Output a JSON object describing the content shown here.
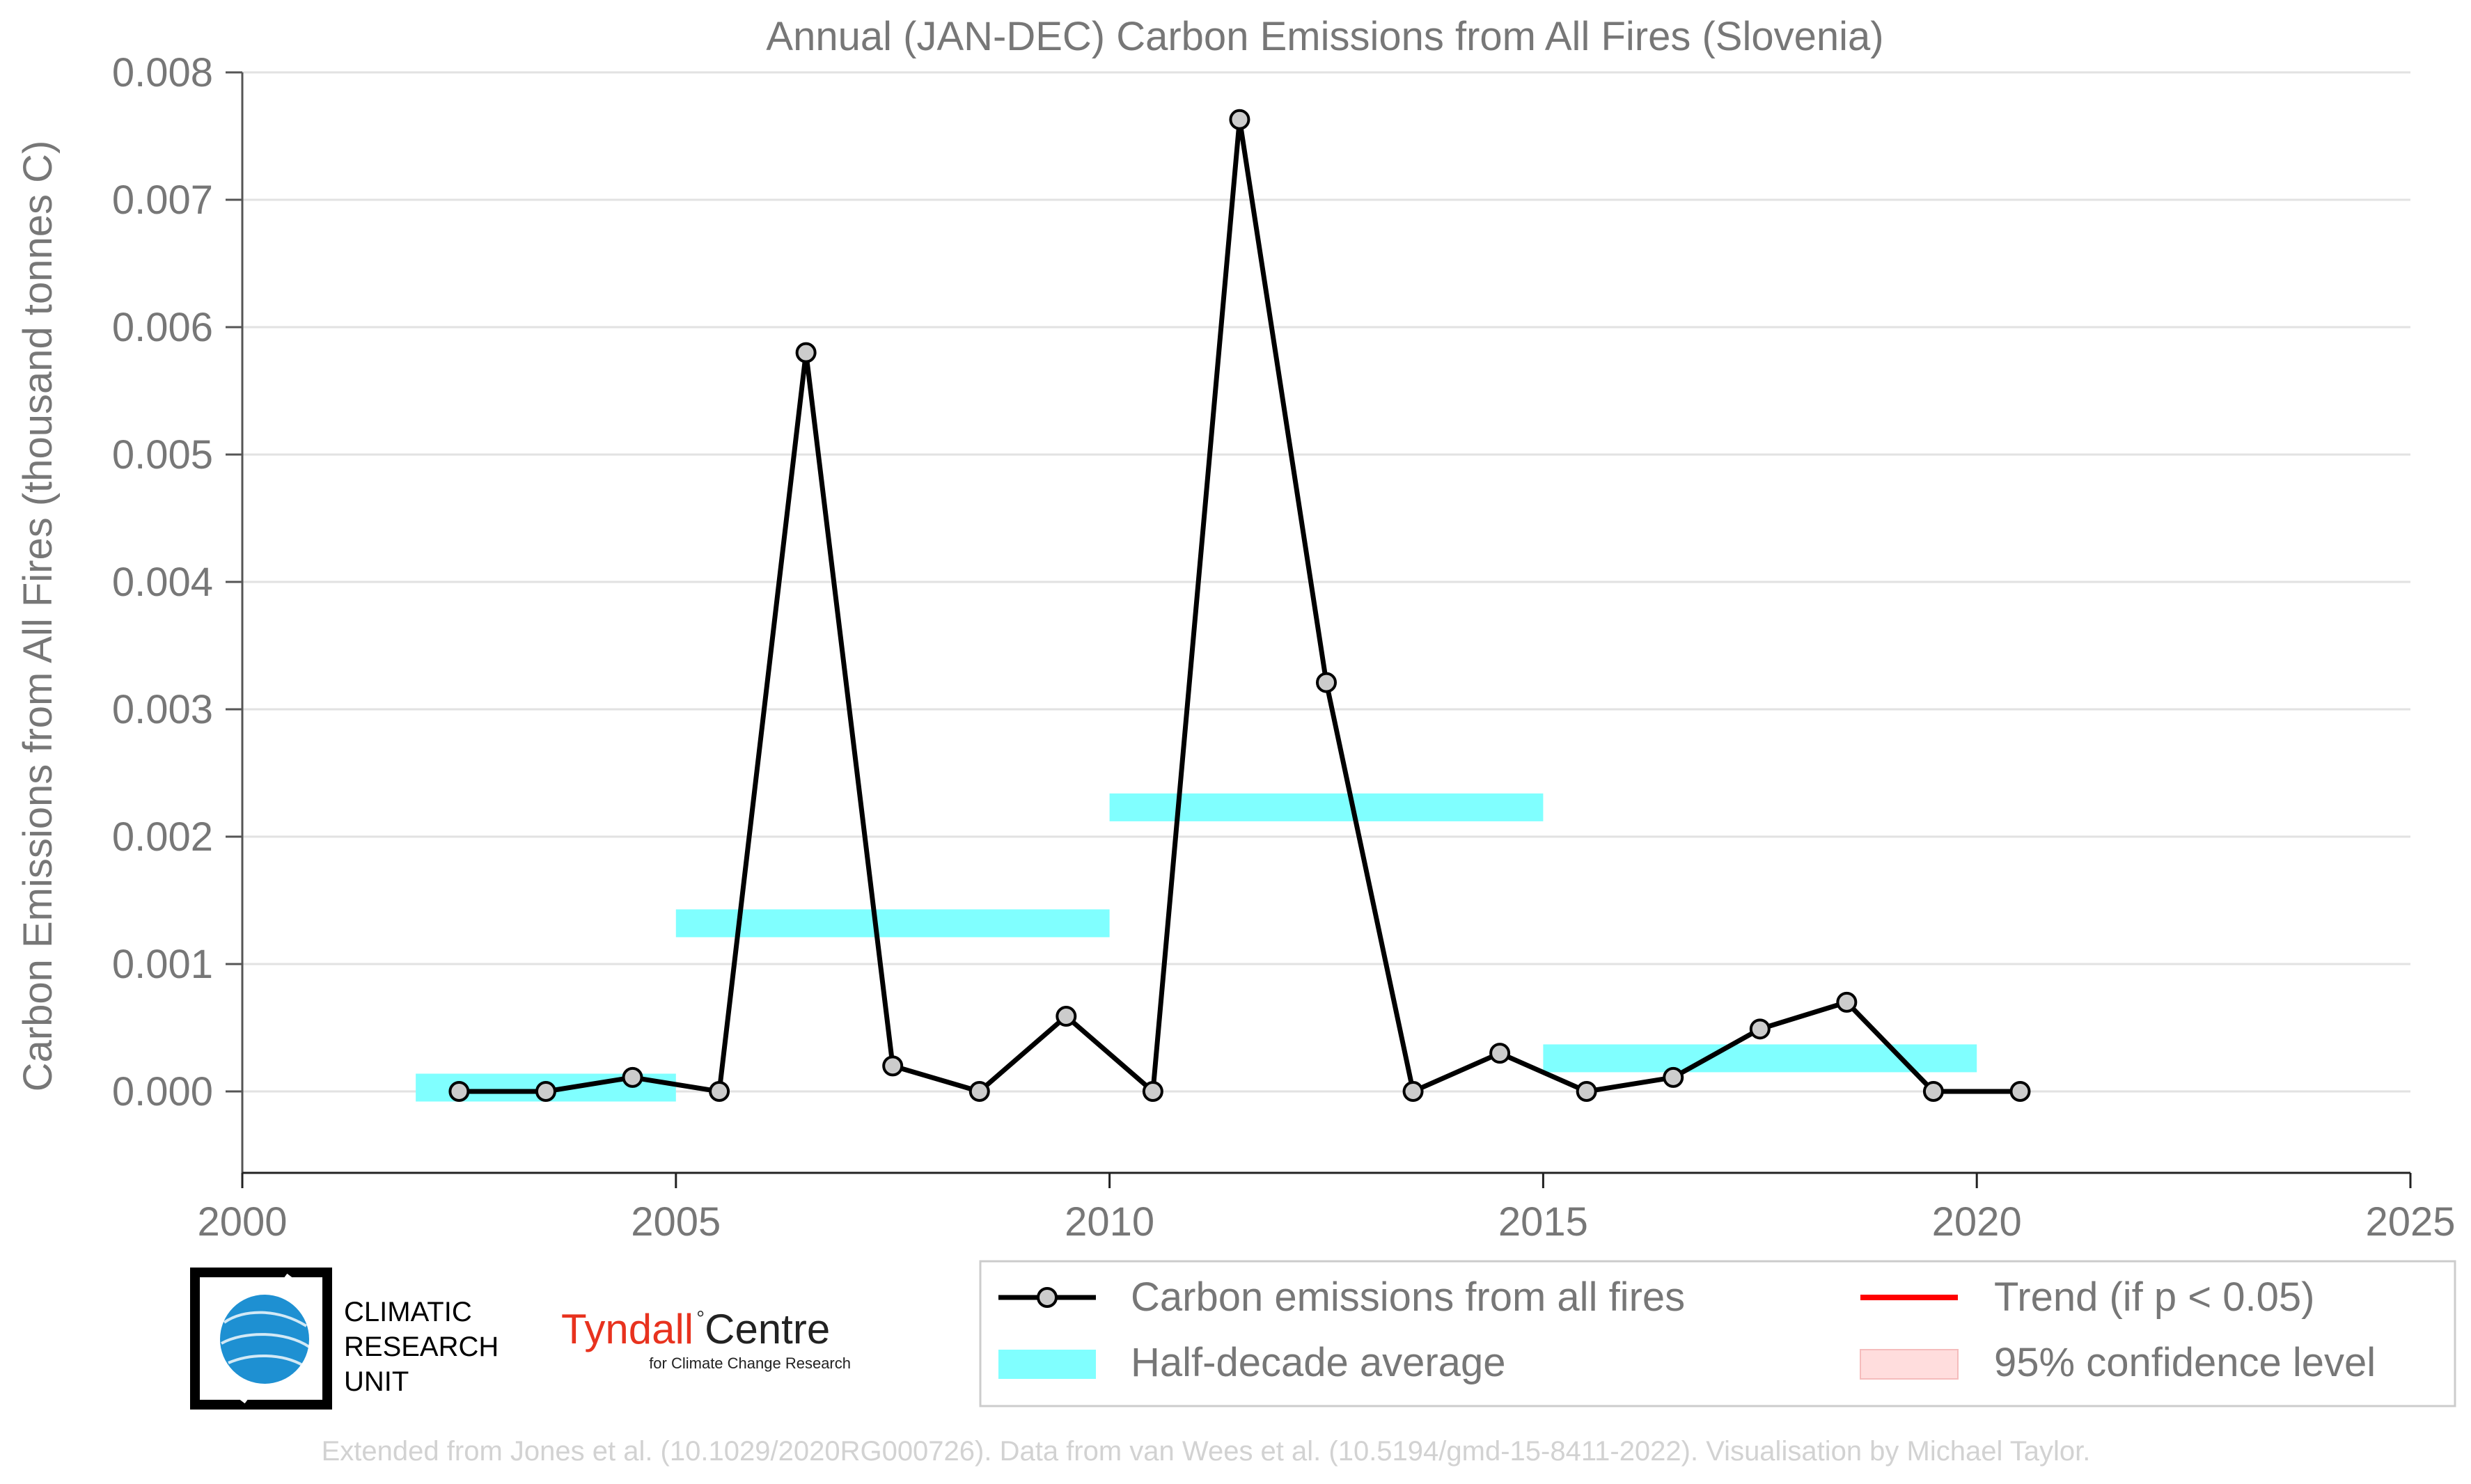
{
  "chart_data": {
    "type": "line",
    "title": "Annual (JAN-DEC) Carbon Emissions from All Fires (Slovenia)",
    "xlabel": "",
    "ylabel": "Carbon Emissions from All Fires (thousand tonnes C)",
    "xlim": [
      2000,
      2025
    ],
    "ylim": [
      -0.0006,
      0.008
    ],
    "x_ticks": [
      2000,
      2005,
      2010,
      2015,
      2020,
      2025
    ],
    "x_tick_labels": [
      "2000",
      "2005",
      "2010",
      "2015",
      "2020",
      "2025"
    ],
    "y_ticks": [
      0,
      0.001,
      0.002,
      0.003,
      0.004,
      0.005,
      0.006,
      0.007,
      0.008
    ],
    "y_tick_labels": [
      "0.000",
      "0.001",
      "0.002",
      "0.003",
      "0.004",
      "0.005",
      "0.006",
      "0.007",
      "0.008"
    ],
    "grid": "horizontal",
    "series": [
      {
        "name": "Carbon emissions from all fires",
        "color": "#000000",
        "marker_fill": "#cccccc",
        "x": [
          2002.5,
          2003.5,
          2004.5,
          2005.5,
          2006.5,
          2007.5,
          2008.5,
          2009.5,
          2010.5,
          2011.5,
          2012.5,
          2013.5,
          2014.5,
          2015.5,
          2016.5,
          2017.5,
          2018.5,
          2019.5,
          2020.5
        ],
        "values": [
          0.0,
          0.0,
          0.00011,
          0.0,
          0.0058,
          0.0002,
          0.0,
          0.00059,
          0.0,
          0.00763,
          0.00321,
          0.0,
          0.0003,
          0.0,
          0.00011,
          0.00049,
          0.0007,
          0.0,
          0.0
        ]
      }
    ],
    "half_decade_average": {
      "name": "Half-decade average",
      "color": "#80ffff",
      "segments": [
        {
          "x_start": 2002,
          "x_end": 2005,
          "value": 3e-05
        },
        {
          "x_start": 2005,
          "x_end": 2010,
          "value": 0.00132
        },
        {
          "x_start": 2010,
          "x_end": 2015,
          "value": 0.00223
        },
        {
          "x_start": 2015,
          "x_end": 2020,
          "value": 0.00026
        }
      ]
    },
    "legend": {
      "placement": "bottom-right",
      "entries": [
        {
          "label": "Carbon emissions from all fires",
          "kind": "line-marker",
          "color": "#000000"
        },
        {
          "label": "Trend (if p < 0.05)",
          "kind": "line",
          "color": "#ff0000"
        },
        {
          "label": "Half-decade average",
          "kind": "patch",
          "color": "#80ffff"
        },
        {
          "label": "95% confidence level",
          "kind": "patch",
          "color": "#ffdddd"
        }
      ]
    }
  },
  "logos": {
    "cru_lines": [
      "CLIMATIC",
      "RESEARCH",
      "UNIT"
    ],
    "tyndall_main": "Tyndall",
    "tyndall_centre": "Centre",
    "tyndall_sub": "for Climate Change Research"
  },
  "footer": {
    "credit": "Extended from Jones et al. (10.1029/2020RG000726). Data from van Wees et al. (10.5194/gmd-15-8411-2022). Visualisation by Michael Taylor."
  }
}
